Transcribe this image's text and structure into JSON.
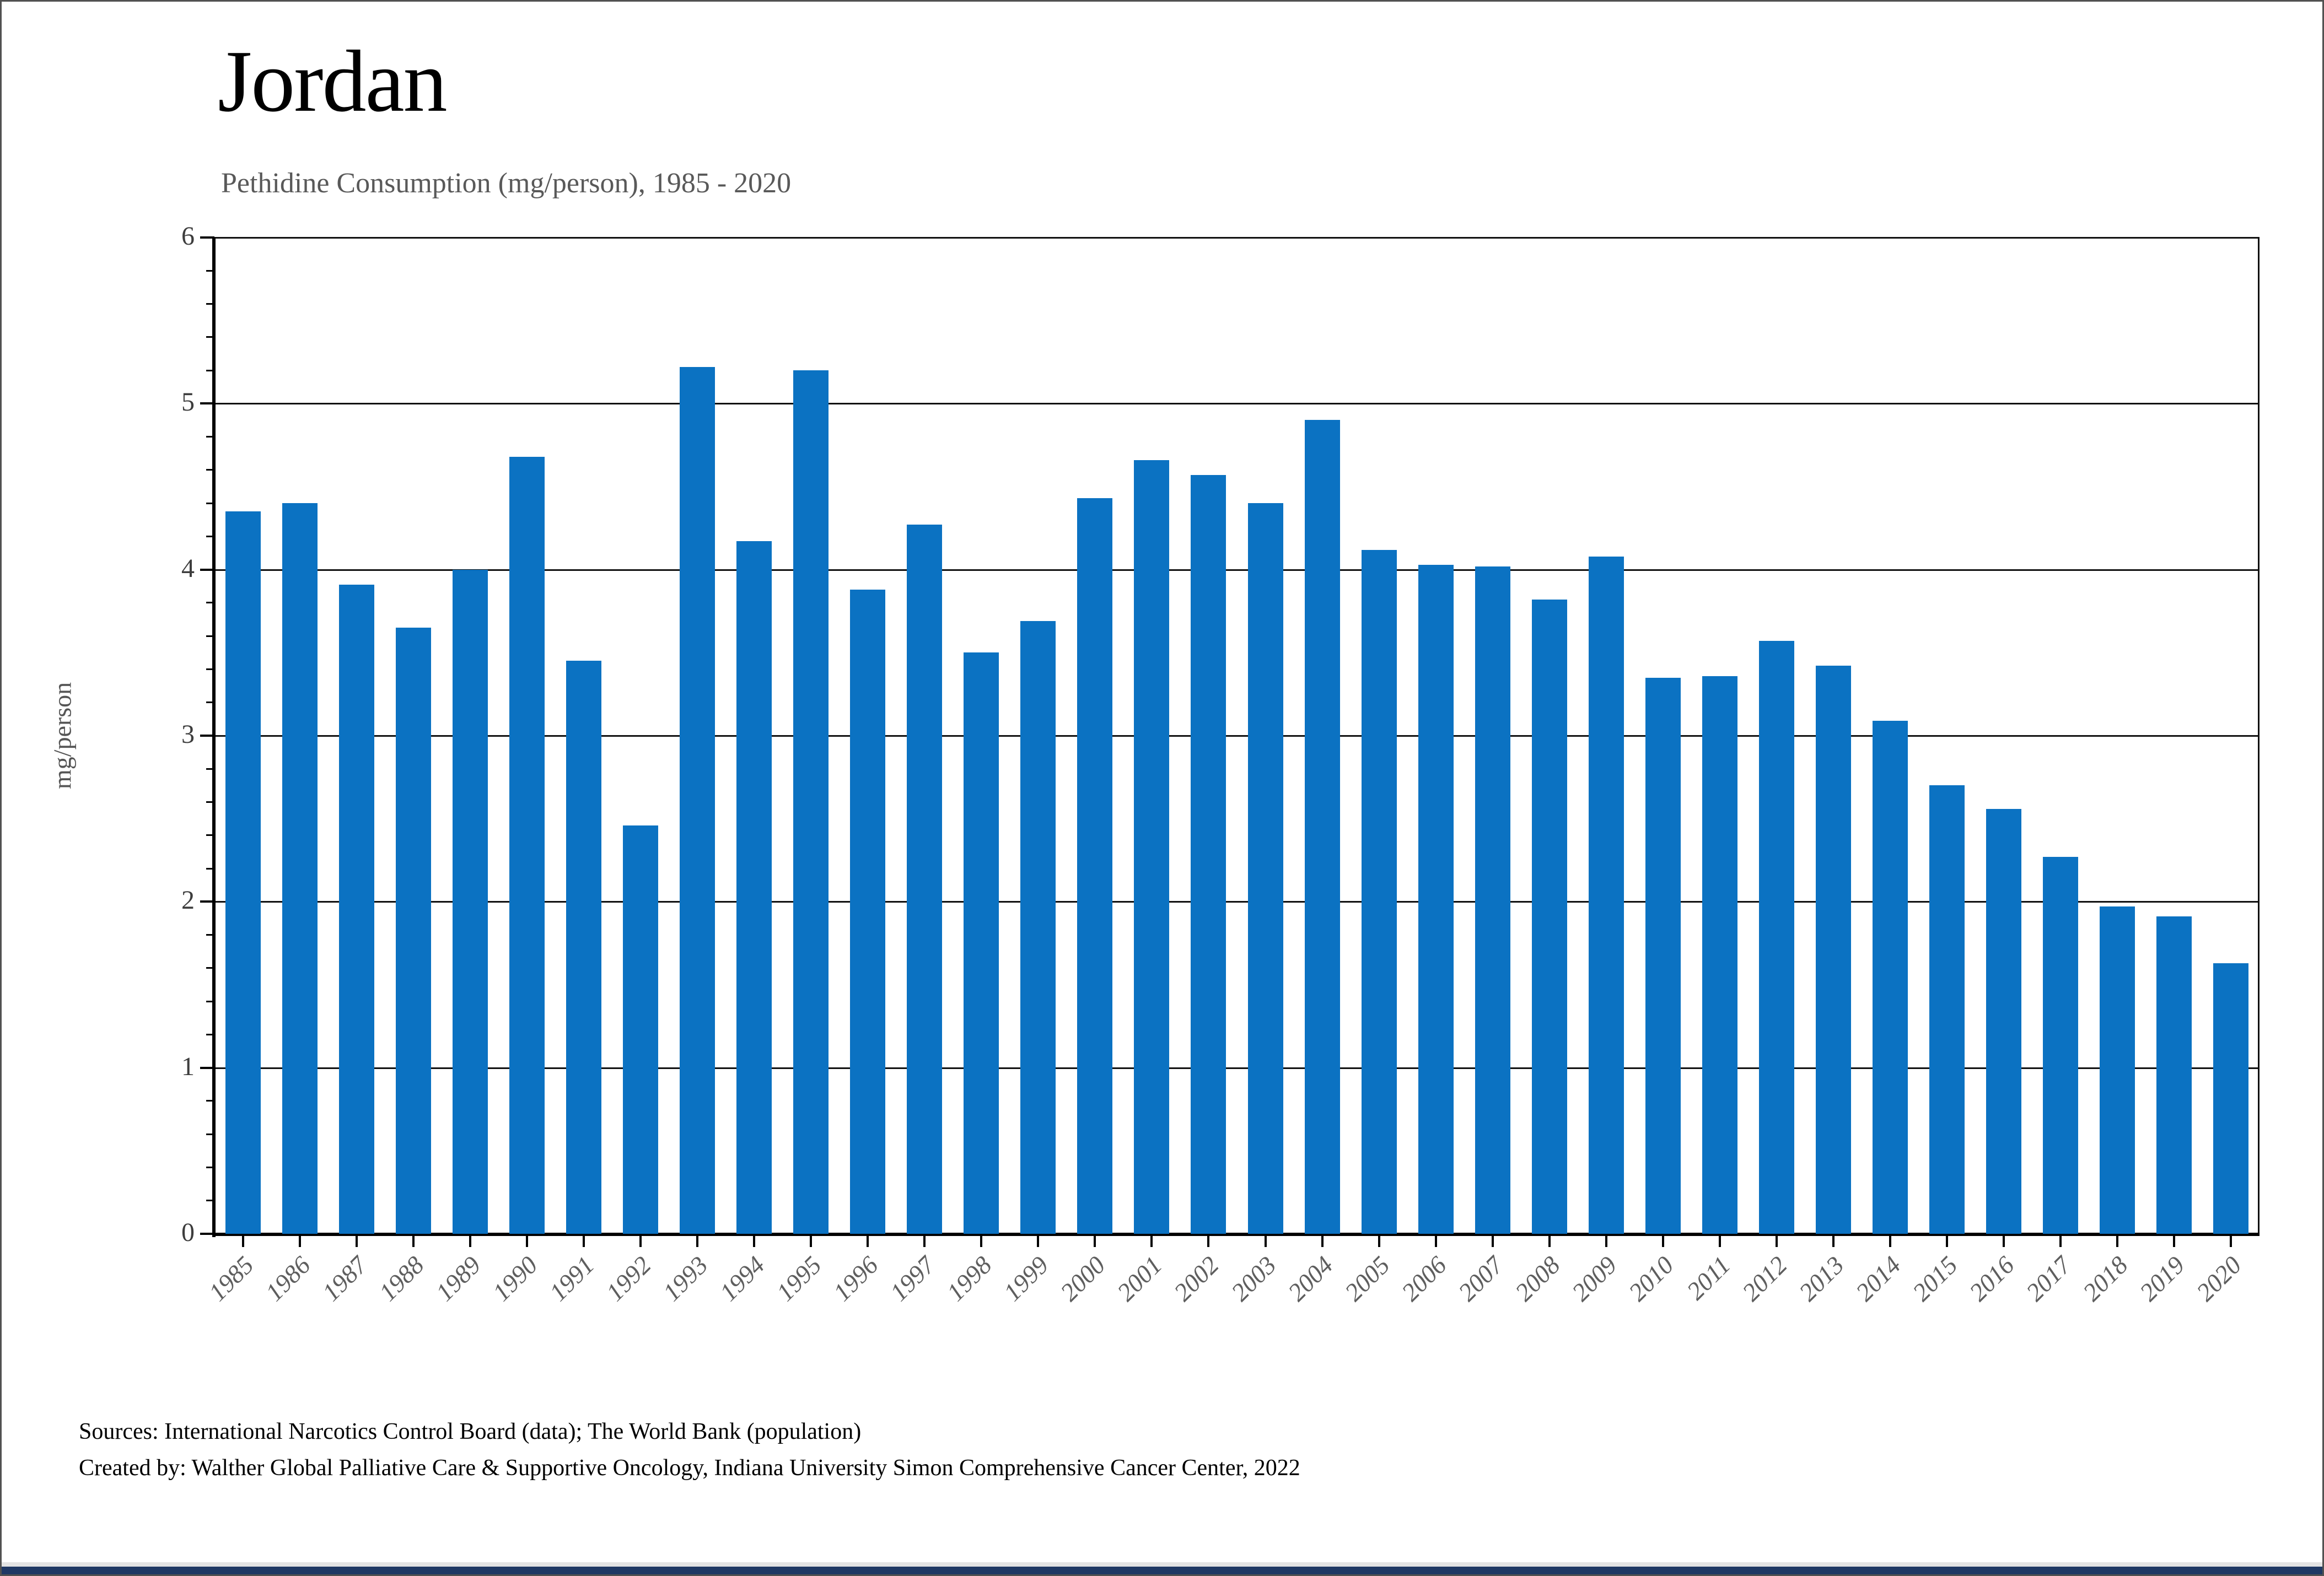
{
  "page": {
    "title": "Jordan",
    "subtitle": "Pethidine Consumption (mg/person), 1985 - 2020",
    "footer_line1": "Sources: International Narcotics Control Board (data); The World Bank (population)",
    "footer_line2": "Created by: Walther Global Palliative Care & Supportive Oncology, Indiana University Simon Comprehensive Cancer Center, 2022"
  },
  "colors": {
    "bar": "#0B72C2",
    "accent_band": "#1F3864",
    "gridline": "#111111",
    "axis": "#000000",
    "subtitle_text": "#595959",
    "tick_text": "#3d3d3d",
    "year_text": "#5e5e5e"
  },
  "chart_data": {
    "type": "bar",
    "title": "Jordan",
    "subtitle": "Pethidine Consumption (mg/person), 1985 - 2020",
    "xlabel": "",
    "ylabel": "mg/person",
    "ylim": [
      0,
      6
    ],
    "ytick_interval": 1,
    "yminor_interval": 0.2,
    "grid": "horizontal-major",
    "legend": "none",
    "categories": [
      1985,
      1986,
      1987,
      1988,
      1989,
      1990,
      1991,
      1992,
      1993,
      1994,
      1995,
      1996,
      1997,
      1998,
      1999,
      2000,
      2001,
      2002,
      2003,
      2004,
      2005,
      2006,
      2007,
      2008,
      2009,
      2010,
      2011,
      2012,
      2013,
      2014,
      2015,
      2016,
      2017,
      2018,
      2019,
      2020
    ],
    "values": [
      4.35,
      4.4,
      3.91,
      3.65,
      4.0,
      4.68,
      3.45,
      2.46,
      5.22,
      4.17,
      5.2,
      3.88,
      4.27,
      3.5,
      3.69,
      4.43,
      4.66,
      4.57,
      4.4,
      4.9,
      4.12,
      4.03,
      4.02,
      3.82,
      4.08,
      3.35,
      3.36,
      3.57,
      3.42,
      3.09,
      2.7,
      2.56,
      2.27,
      1.97,
      1.91,
      1.63
    ]
  }
}
